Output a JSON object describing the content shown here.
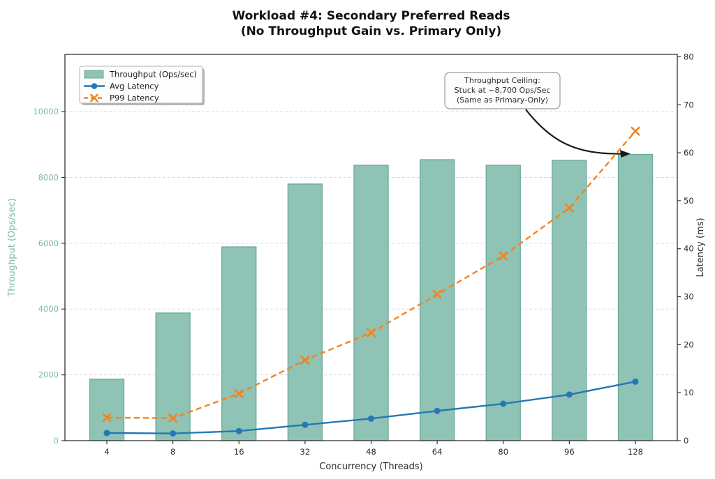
{
  "title": {
    "line1": "Workload #4: Secondary Preferred Reads",
    "line2": "(No Throughput Gain vs. Primary Only)"
  },
  "chart_data": {
    "type": "bar",
    "title": "Workload #4: Secondary Preferred Reads (No Throughput Gain vs. Primary Only)",
    "title_lines": [
      "Workload #4: Secondary Preferred Reads",
      "(No Throughput Gain vs. Primary Only)"
    ],
    "categories": [
      "4",
      "8",
      "16",
      "32",
      "48",
      "64",
      "80",
      "96",
      "128"
    ],
    "xlabel": "Concurrency (Threads)",
    "grid": "horizontal-dashed",
    "legend_position": "upper-left",
    "left_axis": {
      "label": "Throughput (Ops/sec)",
      "ticks": [
        0,
        2000,
        4000,
        6000,
        8000,
        10000
      ],
      "range": [
        0,
        11740
      ],
      "color": "#7db9a8"
    },
    "right_axis": {
      "label": "Latency (ms)",
      "ticks": [
        0,
        10,
        20,
        30,
        40,
        50,
        60,
        70,
        80
      ],
      "range": [
        0,
        80.5
      ],
      "color": "#2b2b2b"
    },
    "series": [
      {
        "name": "Throughput (Ops/sec)",
        "kind": "bar",
        "axis": "left",
        "color": "#8fc3b5",
        "edge_color": "#69aa99",
        "values": [
          1870,
          3880,
          5890,
          7800,
          8370,
          8540,
          8370,
          8520,
          8700
        ]
      },
      {
        "name": "Avg Latency",
        "kind": "line",
        "axis": "right",
        "marker": "circle",
        "color": "#2478b4",
        "values": [
          1.6,
          1.5,
          2.0,
          3.3,
          4.6,
          6.2,
          7.7,
          9.6,
          12.3
        ]
      },
      {
        "name": "P99 Latency",
        "kind": "dashed-line",
        "axis": "right",
        "marker": "x",
        "color": "#f5831e",
        "values": [
          4.8,
          4.7,
          9.8,
          16.8,
          22.5,
          30.5,
          38.5,
          48.5,
          64.5
        ]
      }
    ],
    "annotation": {
      "lines": [
        "Throughput Ceiling:",
        "Stuck at ~8,700 Ops/Sec",
        "(Same as Primary-Only)"
      ],
      "arrow_target_category": "128"
    },
    "colors": {
      "background": "#ffffff",
      "grid": "#d9d9d9",
      "spine": "#333333",
      "text": "#2b2b2b",
      "legend_border": "#b3b3b3",
      "legend_shadow": "#b6b6b6",
      "annotation_border": "#9b9b9b",
      "arrow": "#1a1a1a"
    }
  }
}
